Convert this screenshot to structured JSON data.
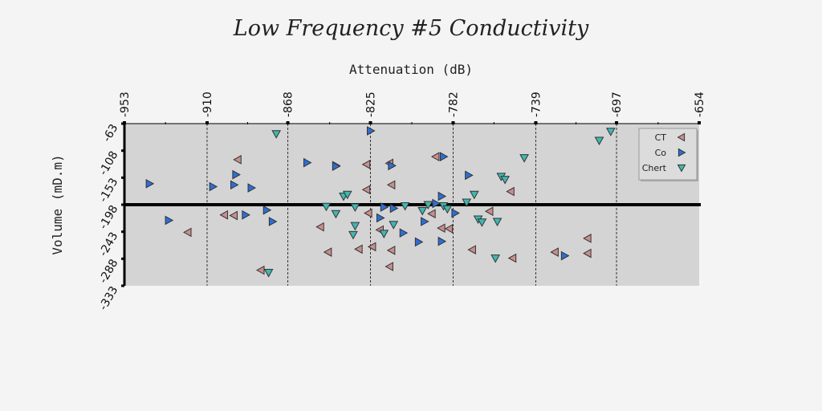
{
  "chart_data": {
    "type": "scatter",
    "title": "Low Frequency #5 Conductivity",
    "xlabel": "Attenuation (dB)",
    "ylabel": "Volume (mD.m)",
    "xlim": [
      -953,
      -654
    ],
    "ylim": [
      -333,
      -63
    ],
    "x_ticks": [
      "-953",
      "-910",
      "-868",
      "-825",
      "-782",
      "-739",
      "-697",
      "-654"
    ],
    "y_ticks": [
      "-63",
      "-108",
      "-153",
      "-198",
      "-243",
      "-288",
      "-333"
    ],
    "x_axis_position": "top",
    "zero_line_y": -198,
    "grid": "vertical dashed at x ticks",
    "legend_position": "top-right",
    "series": [
      {
        "name": "CT",
        "color": "#c98d8d",
        "marker": "triangle-left",
        "points": [
          [
            -894,
            -123
          ],
          [
            -920,
            -244
          ],
          [
            -901,
            -215
          ],
          [
            -896,
            -216
          ],
          [
            -882,
            -307
          ],
          [
            -851,
            -235
          ],
          [
            -847,
            -277
          ],
          [
            -827,
            -131
          ],
          [
            -827,
            -173
          ],
          [
            -826,
            -212
          ],
          [
            -831,
            -272
          ],
          [
            -824,
            -268
          ],
          [
            -820,
            -240
          ],
          [
            -815,
            -301
          ],
          [
            -815,
            -129
          ],
          [
            -814,
            -165
          ],
          [
            -814,
            -274
          ],
          [
            -793,
            -213
          ],
          [
            -791,
            -118
          ],
          [
            -788,
            -237
          ],
          [
            -784,
            -238
          ],
          [
            -772,
            -273
          ],
          [
            -763,
            -209
          ],
          [
            -752,
            -176
          ],
          [
            -751,
            -287
          ],
          [
            -729,
            -277
          ],
          [
            -712,
            -254
          ],
          [
            -712,
            -279
          ]
        ]
      },
      {
        "name": "Co",
        "color": "#2b6fd6",
        "marker": "triangle-right",
        "points": [
          [
            -940,
            -163
          ],
          [
            -907,
            -168
          ],
          [
            -930,
            -224
          ],
          [
            -896,
            -165
          ],
          [
            -895,
            -148
          ],
          [
            -887,
            -170
          ],
          [
            -879,
            -207
          ],
          [
            -876,
            -226
          ],
          [
            -890,
            -215
          ],
          [
            -858,
            -128
          ],
          [
            -843,
            -133
          ],
          [
            -843,
            -134
          ],
          [
            -825,
            -75
          ],
          [
            -820,
            -220
          ],
          [
            -818,
            -202
          ],
          [
            -814,
            -133
          ],
          [
            -813,
            -204
          ],
          [
            -808,
            -245
          ],
          [
            -800,
            -260
          ],
          [
            -797,
            -226
          ],
          [
            -791,
            -196
          ],
          [
            -788,
            -184
          ],
          [
            -787,
            -118
          ],
          [
            -781,
            -212
          ],
          [
            -788,
            -259
          ],
          [
            -774,
            -149
          ],
          [
            -724,
            -283
          ]
        ]
      },
      {
        "name": "Chert",
        "color": "#3fb8b0",
        "marker": "triangle-down",
        "points": [
          [
            -874,
            -80
          ],
          [
            -878,
            -311
          ],
          [
            -848,
            -201
          ],
          [
            -843,
            -213
          ],
          [
            -839,
            -184
          ],
          [
            -837,
            -181
          ],
          [
            -833,
            -202
          ],
          [
            -833,
            -233
          ],
          [
            -834,
            -248
          ],
          [
            -818,
            -246
          ],
          [
            -813,
            -231
          ],
          [
            -807,
            -200
          ],
          [
            -798,
            -208
          ],
          [
            -795,
            -198
          ],
          [
            -787,
            -200
          ],
          [
            -785,
            -205
          ],
          [
            -775,
            -194
          ],
          [
            -771,
            -181
          ],
          [
            -769,
            -222
          ],
          [
            -767,
            -227
          ],
          [
            -759,
            -226
          ],
          [
            -760,
            -287
          ],
          [
            -757,
            -151
          ],
          [
            -755,
            -156
          ],
          [
            -745,
            -120
          ],
          [
            -706,
            -91
          ],
          [
            -700,
            -76
          ]
        ]
      }
    ]
  }
}
